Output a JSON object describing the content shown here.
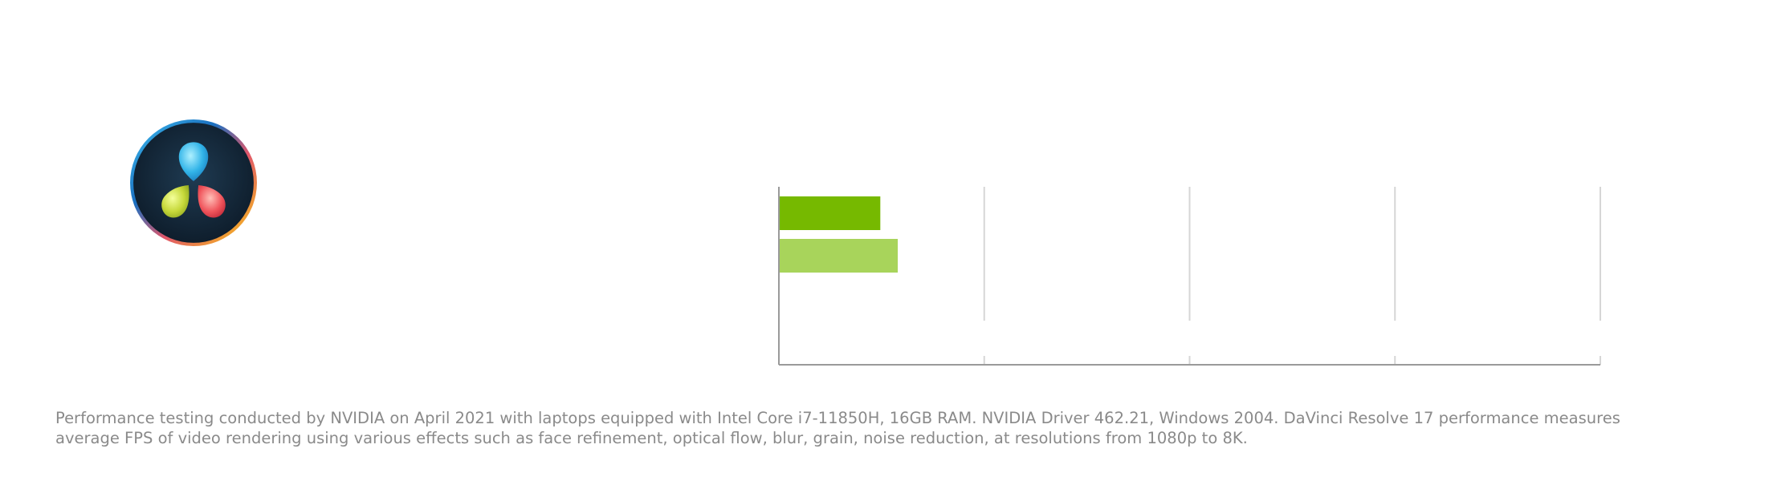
{
  "logo": {
    "icon": "davinci-resolve-logo-icon"
  },
  "chart_data": {
    "type": "bar",
    "orientation": "horizontal",
    "categories": [
      ""
    ],
    "series": [
      {
        "values": [
          0.49
        ],
        "color": "#76b900"
      },
      {
        "values": [
          0.575
        ],
        "color": "#a8d45b"
      }
    ],
    "xlim": [
      0,
      4
    ],
    "xticks": [
      0,
      1,
      2,
      3,
      4
    ],
    "grid": true,
    "legend": "none"
  },
  "footnote": {
    "line1": "Performance testing conducted by NVIDIA on April 2021 with laptops equipped with Intel Core i7-11850H, 16GB RAM. NVIDIA Driver 462.21, Windows 2004. DaVinci Resolve 17 performance measures",
    "line2": "average FPS of video rendering using various effects such as face refinement, optical flow, blur, grain, noise reduction, at resolutions from 1080p to 8K."
  }
}
